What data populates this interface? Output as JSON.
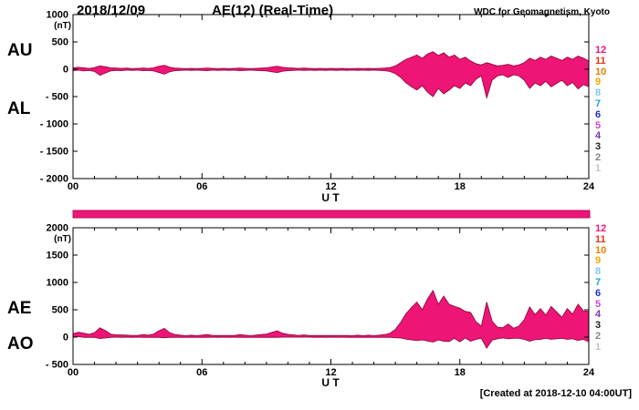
{
  "header": {
    "date": "2018/12/09",
    "title": "AE(12) (Real-Time)",
    "credit": "WDC for Geomagnetism, Kyoto"
  },
  "footer": {
    "created": "[Created at 2018-12-10 04:00UT]"
  },
  "colors": {
    "fill": "#ee1577",
    "stroke": "#9c0f45",
    "axis": "#000000",
    "bar_border": "#b80d5e"
  },
  "availability_bar": {
    "color": "#ee1577"
  },
  "station_legend": [
    {
      "label": "12",
      "color": "#ee1577"
    },
    {
      "label": "11",
      "color": "#e63312"
    },
    {
      "label": "10",
      "color": "#f07d00"
    },
    {
      "label": "9",
      "color": "#f0aa00"
    },
    {
      "label": "8",
      "color": "#7ec8f0"
    },
    {
      "label": "7",
      "color": "#22a0e8"
    },
    {
      "label": "6",
      "color": "#1b35cc"
    },
    {
      "label": "5",
      "color": "#cc44cc"
    },
    {
      "label": "4",
      "color": "#7a35aa"
    },
    {
      "label": "3",
      "color": "#222222"
    },
    {
      "label": "2",
      "color": "#858585"
    },
    {
      "label": "1",
      "color": "#c4c4c4"
    }
  ],
  "chart_data": [
    {
      "type": "area",
      "panel": "AU-AL",
      "ylabel": "(nT)",
      "xlabel": "U T",
      "ylim": [
        -2000,
        1000
      ],
      "yticks": [
        1000,
        500,
        0,
        -500,
        -1000,
        -1500,
        -2000
      ],
      "ytick_labels": [
        "1000",
        "500",
        "0",
        "- 500",
        "- 1000",
        "- 1500",
        "- 2000"
      ],
      "xlim": [
        0,
        24
      ],
      "xticks": [
        0,
        6,
        12,
        18,
        24
      ],
      "xtick_labels": [
        "00",
        "06",
        "12",
        "18",
        "24"
      ],
      "x_start": 0,
      "x_step": 0.25,
      "series": [
        {
          "name": "AU",
          "values": [
            20,
            35,
            25,
            15,
            30,
            60,
            45,
            25,
            20,
            15,
            20,
            10,
            15,
            20,
            15,
            25,
            55,
            70,
            35,
            20,
            15,
            10,
            15,
            10,
            15,
            20,
            15,
            10,
            15,
            10,
            15,
            20,
            15,
            10,
            15,
            20,
            25,
            40,
            55,
            35,
            25,
            20,
            15,
            20,
            15,
            10,
            15,
            10,
            15,
            10,
            15,
            10,
            10,
            15,
            10,
            15,
            10,
            15,
            20,
            30,
            60,
            120,
            180,
            220,
            260,
            200,
            280,
            320,
            250,
            300,
            220,
            260,
            180,
            220,
            150,
            100,
            80,
            120,
            90,
            60,
            70,
            90,
            60,
            80,
            120,
            200,
            160,
            220,
            180,
            240,
            200,
            160,
            220,
            180,
            240,
            200,
            150
          ]
        },
        {
          "name": "AL",
          "values": [
            -25,
            -15,
            -30,
            -20,
            -40,
            -110,
            -70,
            -30,
            -20,
            -25,
            -15,
            -20,
            -15,
            -25,
            -20,
            -30,
            -60,
            -90,
            -45,
            -25,
            -20,
            -15,
            -20,
            -15,
            -20,
            -25,
            -15,
            -20,
            -15,
            -20,
            -15,
            -25,
            -20,
            -15,
            -20,
            -25,
            -30,
            -45,
            -60,
            -35,
            -25,
            -20,
            -15,
            -20,
            -15,
            -20,
            -15,
            -20,
            -15,
            -20,
            -15,
            -20,
            -15,
            -20,
            -15,
            -20,
            -15,
            -20,
            -25,
            -40,
            -80,
            -150,
            -250,
            -320,
            -380,
            -300,
            -420,
            -500,
            -350,
            -450,
            -380,
            -300,
            -350,
            -250,
            -300,
            -180,
            -120,
            -520,
            -200,
            -120,
            -100,
            -150,
            -100,
            -120,
            -200,
            -350,
            -250,
            -300,
            -220,
            -320,
            -260,
            -200,
            -300,
            -240,
            -360,
            -280,
            -320
          ]
        }
      ]
    },
    {
      "type": "area",
      "panel": "AE-AO",
      "ylabel": "(nT)",
      "xlabel": "U T",
      "ylim": [
        -500,
        2000
      ],
      "yticks": [
        2000,
        1500,
        1000,
        500,
        0,
        -500
      ],
      "ytick_labels": [
        "2000",
        "1500",
        "1000",
        "500",
        "0",
        "- 500"
      ],
      "xlim": [
        0,
        24
      ],
      "xticks": [
        0,
        6,
        12,
        18,
        24
      ],
      "xtick_labels": [
        "00",
        "06",
        "12",
        "18",
        "24"
      ],
      "x_start": 0,
      "x_step": 0.25,
      "series": [
        {
          "name": "AE",
          "values": [
            60,
            90,
            70,
            50,
            80,
            170,
            120,
            55,
            40,
            40,
            35,
            30,
            30,
            45,
            35,
            55,
            115,
            160,
            80,
            45,
            35,
            25,
            35,
            25,
            35,
            45,
            30,
            30,
            30,
            30,
            30,
            45,
            35,
            25,
            35,
            45,
            55,
            85,
            115,
            70,
            50,
            40,
            30,
            40,
            30,
            30,
            30,
            30,
            30,
            30,
            30,
            30,
            25,
            35,
            25,
            35,
            25,
            35,
            45,
            70,
            140,
            270,
            430,
            540,
            640,
            500,
            700,
            850,
            600,
            750,
            600,
            560,
            530,
            470,
            450,
            280,
            200,
            640,
            290,
            180,
            170,
            240,
            160,
            200,
            320,
            550,
            410,
            520,
            400,
            560,
            460,
            360,
            520,
            420,
            600,
            480,
            470
          ]
        },
        {
          "name": "AO",
          "values": [
            -5,
            10,
            -5,
            -5,
            -5,
            -25,
            -15,
            -5,
            0,
            -5,
            0,
            -5,
            0,
            -5,
            -5,
            -5,
            -5,
            -10,
            -5,
            -5,
            -5,
            -5,
            -5,
            -5,
            -5,
            -5,
            0,
            -5,
            0,
            -5,
            0,
            -5,
            -5,
            -5,
            -5,
            -5,
            -5,
            -5,
            -5,
            0,
            0,
            0,
            0,
            0,
            0,
            -5,
            0,
            -5,
            0,
            -5,
            0,
            -5,
            -5,
            -5,
            -5,
            -5,
            -5,
            -5,
            -5,
            -5,
            -10,
            -15,
            -35,
            -50,
            -60,
            -50,
            -70,
            -90,
            -50,
            -75,
            -80,
            -20,
            -85,
            -15,
            -75,
            -40,
            -20,
            -200,
            -55,
            -30,
            -15,
            -30,
            -20,
            -20,
            -40,
            -75,
            -45,
            -40,
            -20,
            -40,
            -30,
            -20,
            -40,
            -30,
            -60,
            -40,
            -85
          ]
        }
      ]
    }
  ]
}
